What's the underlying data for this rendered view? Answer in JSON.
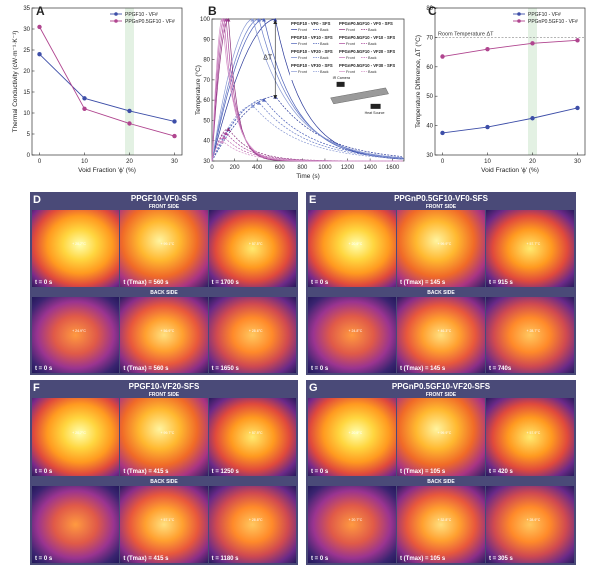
{
  "chartA": {
    "letter": "A",
    "type": "line",
    "xlabel": "Void Fraction 'ϕ' (%)",
    "ylabel": "Thermal Conductivity (cW·m⁻¹·K⁻¹)",
    "xticks": [
      "0",
      "10",
      "20",
      "30"
    ],
    "yticks": [
      "0",
      "5",
      "10",
      "15",
      "20",
      "25",
      "30",
      "35"
    ],
    "series": [
      {
        "name": "PPGF10 - VF#",
        "color": "#3d4ea8",
        "x": [
          0,
          10,
          20,
          30
        ],
        "y": [
          24,
          13.5,
          10.5,
          8
        ]
      },
      {
        "name": "PPGnP0.5GF10 - VF#",
        "color": "#b0458f",
        "x": [
          0,
          10,
          20,
          30
        ],
        "y": [
          30.5,
          11,
          7.5,
          4.5
        ]
      }
    ]
  },
  "chartB": {
    "letter": "B",
    "type": "line",
    "xlabel": "Time (s)",
    "ylabel": "Temperature (°C)",
    "xticks": [
      "0",
      "200",
      "400",
      "600",
      "800",
      "1000",
      "1200",
      "1400",
      "1600"
    ],
    "yticks": [
      "30",
      "40",
      "50",
      "60",
      "70",
      "80",
      "90",
      "100"
    ],
    "delta": "ΔT",
    "legend": [
      {
        "name": "PPGF10 - VF0 - SFS",
        "front": "Front",
        "back": "Back"
      },
      {
        "name": "PPGnP0.5GF10 - VF0 - SFS",
        "front": "Front",
        "back": "Back"
      },
      {
        "name": "PPGF10 - VF10 - SFS",
        "front": "Front",
        "back": "Back"
      },
      {
        "name": "PPGnP0.5GF10 - VF10 - SFS",
        "front": "Front",
        "back": "Back"
      },
      {
        "name": "PPGF10 - VF20 - SFS",
        "front": "Front",
        "back": "Back"
      },
      {
        "name": "PPGnP0.5GF10 - VF20 - SFS",
        "front": "Front",
        "back": "Back"
      },
      {
        "name": "PPGF10 - VF30 - SFS",
        "front": "Front",
        "back": "Back"
      },
      {
        "name": "PPGnP0.5GF10 - VF30 - SFS",
        "front": "Front",
        "back": "Back"
      }
    ],
    "inset": {
      "camera": "IR Camera",
      "source": "Heat Source"
    },
    "blue_peaks": [
      560,
      460,
      415,
      360
    ],
    "purple_peaks": [
      145,
      125,
      105,
      90
    ]
  },
  "chartC": {
    "letter": "C",
    "type": "line",
    "xlabel": "Void Fraction 'ϕ' (%)",
    "ylabel": "Temperature Difference, ΔT (°C)",
    "xticks": [
      "0",
      "10",
      "20",
      "30"
    ],
    "yticks": [
      "30",
      "40",
      "50",
      "60",
      "70",
      "80"
    ],
    "reference": {
      "label": "Room Temperature ΔT",
      "value": 70
    },
    "series": [
      {
        "name": "PPGF10 - VF#",
        "color": "#3d4ea8",
        "x": [
          0,
          10,
          20,
          30
        ],
        "y": [
          37.5,
          39.5,
          42.5,
          46
        ]
      },
      {
        "name": "PPGnP0.5GF10 - VF#",
        "color": "#b0458f",
        "x": [
          0,
          10,
          20,
          30
        ],
        "y": [
          63.5,
          66,
          68,
          69
        ]
      }
    ]
  },
  "groups": [
    {
      "letter": "D",
      "title": "PPGF10-VF0-SFS",
      "front": "Front Side",
      "back": "Back Side",
      "front_times": [
        "t = 0 s",
        "t (Tmax) = 560 s",
        "t = 1700 s"
      ],
      "back_times": [
        "t = 0 s",
        "t (Tmax) = 560 s",
        "t = 1650 s"
      ],
      "front_temps": [
        "20.7°C",
        "99.1°C",
        "57.5°C"
      ],
      "back_temps": [
        "24.9°C",
        "56.9°C",
        "28.6°C"
      ]
    },
    {
      "letter": "E",
      "title": "PPGnP0.5GF10-VF0-SFS",
      "front": "Front Side",
      "back": "Back Side",
      "front_times": [
        "t = 0 s",
        "t (Tmax) = 145 s",
        "t = 915 s"
      ],
      "back_times": [
        "t = 0 s",
        "t (Tmax) = 145 s",
        "t = 740s"
      ],
      "front_temps": [
        "20.9°C",
        "99.9°C",
        "57.7°C"
      ],
      "back_temps": [
        "24.8°C",
        "46.3°C",
        "28.7°C"
      ]
    },
    {
      "letter": "F",
      "title": "PPGF10-VF20-SFS",
      "front": "Front Side",
      "back": "Back Side",
      "front_times": [
        "t = 0 s",
        "t (Tmax) = 415 s",
        "t = 1250 s"
      ],
      "back_times": [
        "t = 0 s",
        "t (Tmax) = 415 s",
        "t = 1180 s"
      ],
      "front_temps": [
        "20.7°C",
        "99.7°C",
        "57.9°C"
      ],
      "back_temps": [
        "",
        "57.1°C",
        "28.8°C"
      ]
    },
    {
      "letter": "G",
      "title": "PPGnP0.5GF10-VF20-SFS",
      "front": "Front Side",
      "back": "Back Side",
      "front_times": [
        "t = 0 s",
        "t (Tmax) = 105 s",
        "t = 420 s"
      ],
      "back_times": [
        "t = 0 s",
        "t (Tmax) = 105 s",
        "t = 305 s"
      ],
      "front_temps": [
        "20.9°C",
        "99.9°C",
        "57.9°C"
      ],
      "back_temps": [
        "20.7°C",
        "32.8°C",
        "28.9°C"
      ]
    }
  ]
}
